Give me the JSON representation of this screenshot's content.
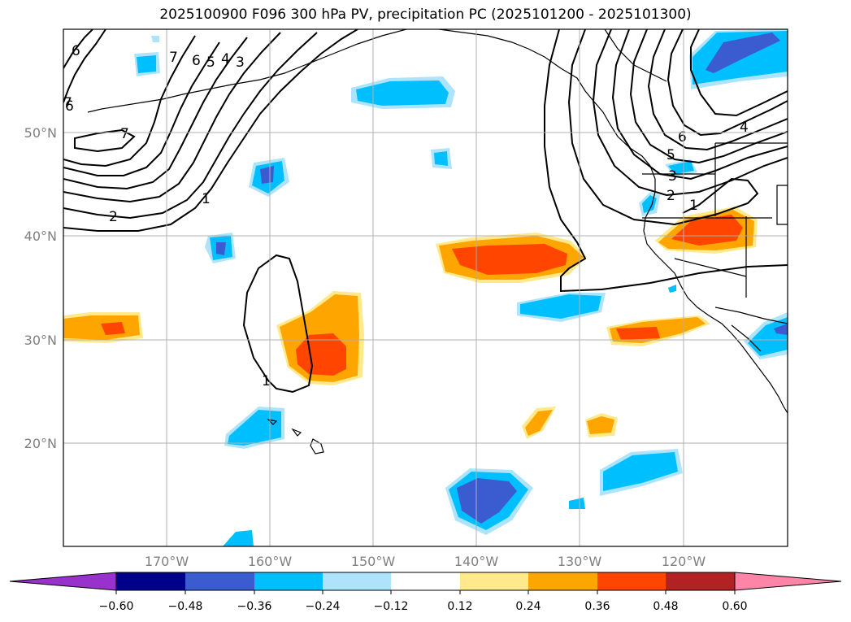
{
  "title": "2025100900 F096 300 hPa PV, precipitation PC (2025101200 - 2025101300)",
  "lat_labels": [
    "50°N",
    "40°N",
    "30°N",
    "20°N"
  ],
  "lon_labels": [
    "170°W",
    "160°W",
    "150°W",
    "140°W",
    "130°W",
    "120°W"
  ],
  "colorbar": {
    "ticks": [
      "−0.60",
      "−0.48",
      "−0.36",
      "−0.24",
      "−0.12",
      "0.12",
      "0.24",
      "0.36",
      "0.48",
      "0.60"
    ],
    "colors": [
      "#9932cc",
      "#00008b",
      "#3b5bd1",
      "#00bfff",
      "#aee4fb",
      "#ffffff",
      "#ffe98a",
      "#ffa500",
      "#ff4500",
      "#b22222",
      "#ff85a8"
    ]
  },
  "contour_labels": [
    "6",
    "7",
    "6",
    "5",
    "4",
    "3",
    "7",
    "2",
    "1",
    "6",
    "1",
    "7",
    "6",
    "5",
    "4",
    "3",
    "2",
    "1"
  ],
  "colors": {
    "grid": "#b0b0b0",
    "coast": "#000000",
    "pv_contour": "#000000",
    "neg_light": "#aee4fb",
    "neg_mid": "#00bfff",
    "neg_dark": "#3b5bd1",
    "pos_light": "#ffe98a",
    "pos_mid": "#ffa500",
    "pos_dark": "#ff4500"
  }
}
